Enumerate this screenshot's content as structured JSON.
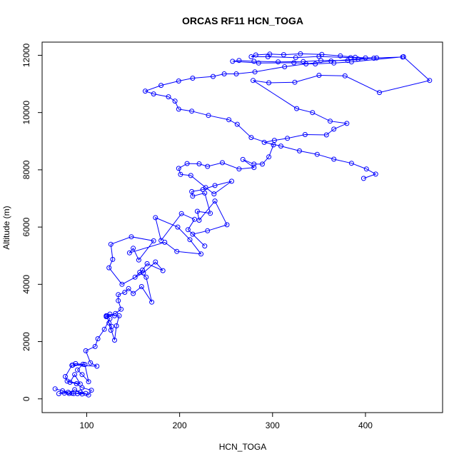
{
  "chart_data": {
    "type": "line",
    "title": "ORCAS RF11 HCN_TOGA",
    "xlabel": "HCN_TOGA",
    "ylabel": "Altitude (m)",
    "xlim": [
      52,
      483
    ],
    "ylim": [
      -480,
      12460
    ],
    "xticks": [
      100,
      200,
      300,
      400
    ],
    "yticks": [
      0,
      2000,
      4000,
      6000,
      8000,
      10000,
      12000
    ],
    "marker": "open-circle",
    "grid": false,
    "colors": {
      "series": "#0000ff",
      "axes": "#000000"
    },
    "series": [
      {
        "values": [
          [
            84,
            195
          ],
          [
            90,
            180
          ],
          [
            95,
            170
          ],
          [
            99,
            190
          ],
          [
            86,
            185
          ],
          [
            76,
            200
          ],
          [
            70,
            180
          ],
          [
            80,
            230
          ],
          [
            66,
            350
          ],
          [
            74,
            280
          ],
          [
            81,
            190
          ],
          [
            87,
            320
          ],
          [
            93,
            230
          ],
          [
            102,
            135
          ],
          [
            105,
            300
          ],
          [
            95,
            390
          ],
          [
            89,
            530
          ],
          [
            82,
            580
          ],
          [
            87,
            850
          ],
          [
            93,
            520
          ],
          [
            79,
            620
          ],
          [
            77,
            780
          ],
          [
            84,
            1170
          ],
          [
            96,
            1210
          ],
          [
            90,
            1010
          ],
          [
            95,
            850
          ],
          [
            102,
            600
          ],
          [
            98,
            1200
          ],
          [
            88,
            1230
          ],
          [
            85,
            1180
          ],
          [
            111,
            1140
          ],
          [
            104,
            1260
          ],
          [
            99,
            1680
          ],
          [
            109,
            1830
          ],
          [
            112,
            2100
          ],
          [
            119,
            2430
          ],
          [
            125,
            2800
          ],
          [
            121,
            2900
          ],
          [
            125,
            2960
          ],
          [
            130,
            2900
          ],
          [
            135,
            2900
          ],
          [
            132,
            2550
          ],
          [
            130,
            2050
          ],
          [
            124,
            2650
          ],
          [
            127,
            2530
          ],
          [
            126,
            2400
          ],
          [
            122,
            2900
          ],
          [
            121,
            2870
          ],
          [
            131,
            2980
          ],
          [
            137,
            3130
          ],
          [
            134,
            3430
          ],
          [
            134,
            3640
          ],
          [
            141,
            3720
          ],
          [
            145,
            3850
          ],
          [
            150,
            3680
          ],
          [
            159,
            3920
          ],
          [
            170,
            3380
          ],
          [
            164,
            4250
          ],
          [
            157,
            4420
          ],
          [
            152,
            4250
          ],
          [
            160,
            4500
          ],
          [
            165,
            4720
          ],
          [
            182,
            4480
          ],
          [
            174,
            4780
          ],
          [
            161,
            4400
          ],
          [
            138,
            4000
          ],
          [
            124,
            4580
          ],
          [
            128,
            4870
          ],
          [
            126,
            5400
          ],
          [
            148,
            5660
          ],
          [
            172,
            5520
          ],
          [
            156,
            4850
          ],
          [
            150,
            5260
          ],
          [
            146,
            5100
          ],
          [
            184,
            5470
          ],
          [
            197,
            5150
          ],
          [
            223,
            5060
          ],
          [
            211,
            5560
          ],
          [
            198,
            6000
          ],
          [
            174,
            6330
          ],
          [
            180,
            5530
          ],
          [
            202,
            6470
          ],
          [
            216,
            6270
          ],
          [
            209,
            5910
          ],
          [
            227,
            5340
          ],
          [
            214,
            5750
          ],
          [
            230,
            5870
          ],
          [
            251,
            6080
          ],
          [
            238,
            6910
          ],
          [
            221,
            6240
          ],
          [
            219,
            6550
          ],
          [
            233,
            6480
          ],
          [
            227,
            7190
          ],
          [
            214,
            7080
          ],
          [
            213,
            7240
          ],
          [
            225,
            7310
          ],
          [
            238,
            7450
          ],
          [
            256,
            7600
          ],
          [
            237,
            7160
          ],
          [
            228,
            7380
          ],
          [
            212,
            7800
          ],
          [
            201,
            7840
          ],
          [
            199,
            8050
          ],
          [
            208,
            8220
          ],
          [
            221,
            8210
          ],
          [
            230,
            8120
          ],
          [
            246,
            8250
          ],
          [
            264,
            8030
          ],
          [
            280,
            8080
          ],
          [
            268,
            8360
          ],
          [
            280,
            8200
          ],
          [
            289,
            8200
          ],
          [
            296,
            8450
          ],
          [
            301,
            8870
          ],
          [
            277,
            9130
          ],
          [
            262,
            9590
          ],
          [
            253,
            9750
          ],
          [
            231,
            9900
          ],
          [
            213,
            10050
          ],
          [
            199,
            10120
          ],
          [
            195,
            10400
          ],
          [
            188,
            10550
          ],
          [
            172,
            10650
          ],
          [
            163,
            10750
          ],
          [
            180,
            10950
          ],
          [
            199,
            11100
          ],
          [
            214,
            11200
          ],
          [
            236,
            11260
          ],
          [
            248,
            11350
          ],
          [
            261,
            11350
          ],
          [
            281,
            11420
          ],
          [
            313,
            11600
          ],
          [
            336,
            11700
          ],
          [
            363,
            11800
          ],
          [
            392,
            11870
          ],
          [
            400,
            11910
          ],
          [
            389,
            11930
          ],
          [
            373,
            11980
          ],
          [
            353,
            12030
          ],
          [
            330,
            12050
          ],
          [
            312,
            12020
          ],
          [
            297,
            12040
          ],
          [
            282,
            12010
          ],
          [
            277,
            11950
          ],
          [
            295,
            11950
          ],
          [
            325,
            11920
          ],
          [
            350,
            11960
          ],
          [
            384,
            11920
          ],
          [
            412,
            11910
          ],
          [
            440,
            11940
          ],
          [
            409,
            11900
          ],
          [
            381,
            11820
          ],
          [
            352,
            11820
          ],
          [
            333,
            11780
          ],
          [
            306,
            11770
          ],
          [
            280,
            11790
          ],
          [
            264,
            11820
          ],
          [
            257,
            11790
          ],
          [
            285,
            11730
          ],
          [
            323,
            11740
          ],
          [
            346,
            11700
          ],
          [
            366,
            11730
          ],
          [
            385,
            11770
          ],
          [
            441,
            11950
          ],
          [
            469,
            11120
          ],
          [
            415,
            10700
          ],
          [
            378,
            11280
          ],
          [
            350,
            11300
          ],
          [
            324,
            11060
          ],
          [
            296,
            11040
          ],
          [
            279,
            11120
          ],
          [
            326,
            10140
          ],
          [
            343,
            10000
          ],
          [
            362,
            9700
          ],
          [
            380,
            9620
          ],
          [
            366,
            9420
          ],
          [
            358,
            9220
          ],
          [
            335,
            9230
          ],
          [
            316,
            9100
          ],
          [
            302,
            9030
          ],
          [
            291,
            8960
          ],
          [
            309,
            8830
          ],
          [
            329,
            8660
          ],
          [
            348,
            8540
          ],
          [
            366,
            8370
          ],
          [
            385,
            8230
          ],
          [
            401,
            8030
          ],
          [
            411,
            7850
          ],
          [
            398,
            7700
          ]
        ]
      }
    ]
  }
}
